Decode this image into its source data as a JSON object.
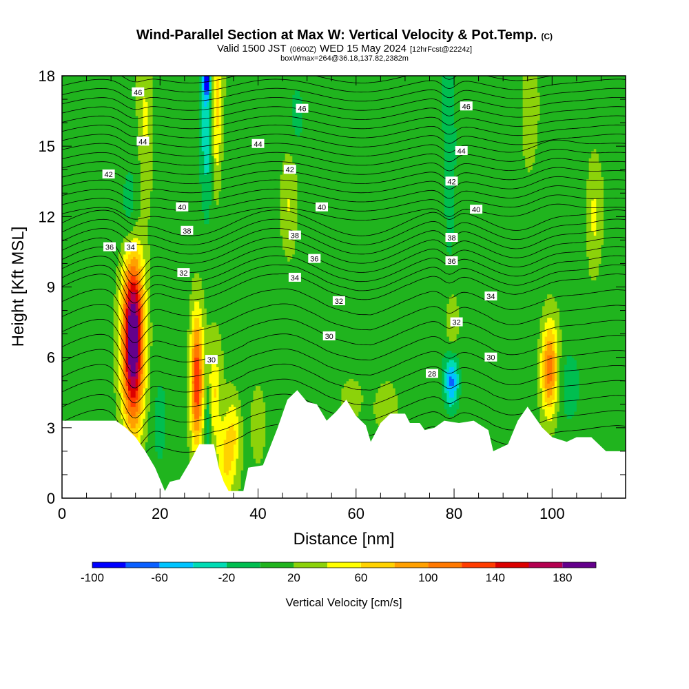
{
  "title": {
    "main": "Wind-Parallel Section at Max W: Vertical Velocity & Pot.Temp.",
    "copyright": "(C)",
    "valid_prefix": "Valid 1500 JST",
    "zulu": "(0600Z)",
    "valid_date": "WED 15 May 2024",
    "forecast": "[12hrFcst@2224z]",
    "box": "boxWmax=264@36.18,137.82,2382m"
  },
  "chart_data": {
    "type": "heatmap",
    "xlabel": "Distance [nm]",
    "ylabel": "Height [Kft MSL]",
    "xlim": [
      0,
      115
    ],
    "ylim": [
      0,
      18
    ],
    "x_ticks": [
      "0",
      "20",
      "40",
      "60",
      "80",
      "100"
    ],
    "x_tick_values": [
      0,
      20,
      40,
      60,
      80,
      100
    ],
    "y_ticks": [
      "0",
      "3",
      "6",
      "9",
      "12",
      "15",
      "18"
    ],
    "y_tick_values": [
      0,
      3,
      6,
      9,
      12,
      15,
      18
    ],
    "colorbar": {
      "label": "Vertical Velocity [cm/s]",
      "tick_labels": [
        "-100",
        "-60",
        "-20",
        "20",
        "60",
        "100",
        "140",
        "180"
      ],
      "tick_values": [
        -100,
        -60,
        -20,
        20,
        60,
        100,
        140,
        180
      ],
      "levels": [
        -100,
        -80,
        -60,
        -40,
        -20,
        0,
        20,
        40,
        60,
        80,
        100,
        120,
        140,
        160,
        180,
        200
      ],
      "colors": [
        "#0000ff",
        "#0a60ff",
        "#00c4ff",
        "#00dcb4",
        "#00be50",
        "#20b41e",
        "#8cd20a",
        "#ffff00",
        "#ffd200",
        "#ffa000",
        "#ff7800",
        "#ff3c00",
        "#dc0000",
        "#b40050",
        "#64008c"
      ]
    },
    "terrain_profile_kft": [
      [
        0,
        3.3
      ],
      [
        11,
        3.3
      ],
      [
        13,
        3.0
      ],
      [
        15,
        2.6
      ],
      [
        17,
        2.0
      ],
      [
        19,
        1.3
      ],
      [
        20,
        0.8
      ],
      [
        21,
        0.3
      ],
      [
        22,
        0.7
      ],
      [
        24,
        0.8
      ],
      [
        26,
        1.5
      ],
      [
        28,
        2.3
      ],
      [
        31,
        2.3
      ],
      [
        32,
        1.3
      ],
      [
        33,
        0.7
      ],
      [
        34,
        0.3
      ],
      [
        37,
        0.3
      ],
      [
        38,
        1.3
      ],
      [
        41,
        1.4
      ],
      [
        44,
        3.0
      ],
      [
        46,
        4.2
      ],
      [
        48,
        4.6
      ],
      [
        50,
        4.1
      ],
      [
        52,
        4.0
      ],
      [
        54,
        3.3
      ],
      [
        56,
        3.7
      ],
      [
        58,
        4.2
      ],
      [
        60,
        3.5
      ],
      [
        62,
        3.1
      ],
      [
        63,
        2.4
      ],
      [
        65,
        3.2
      ],
      [
        67,
        3.6
      ],
      [
        70,
        3.6
      ],
      [
        71,
        3.2
      ],
      [
        73,
        3.2
      ],
      [
        74,
        2.9
      ],
      [
        76,
        3.0
      ],
      [
        78,
        3.3
      ],
      [
        81,
        3.2
      ],
      [
        84,
        3.3
      ],
      [
        87,
        2.9
      ],
      [
        88,
        2.0
      ],
      [
        91,
        2.3
      ],
      [
        93,
        3.3
      ],
      [
        95,
        3.9
      ],
      [
        98,
        3.0
      ],
      [
        100,
        2.6
      ],
      [
        103,
        2.4
      ],
      [
        105,
        2.6
      ],
      [
        108,
        2.6
      ],
      [
        111,
        2.0
      ],
      [
        115,
        2.0
      ]
    ],
    "velocity_features": [
      {
        "x": 14.5,
        "y": 6.8,
        "sx": 1.5,
        "sy": 2.6,
        "w": 200
      },
      {
        "x": 27.5,
        "y": 5.0,
        "sx": 0.9,
        "sy": 2.0,
        "w": 125
      },
      {
        "x": 33.5,
        "y": 1.6,
        "sx": 1.5,
        "sy": 1.3,
        "w": 55
      },
      {
        "x": 31.0,
        "y": 4.5,
        "sx": 0.9,
        "sy": 1.3,
        "w": 45
      },
      {
        "x": 99.5,
        "y": 5.5,
        "sx": 1.2,
        "sy": 1.4,
        "w": 100
      },
      {
        "x": 31.5,
        "y": 16.5,
        "sx": 0.8,
        "sy": 2.5,
        "w": 55
      },
      {
        "x": 17.0,
        "y": 16.0,
        "sx": 1.0,
        "sy": 2.5,
        "w": 30
      },
      {
        "x": 46.5,
        "y": 12.5,
        "sx": 1.2,
        "sy": 1.5,
        "w": 32
      },
      {
        "x": 108.5,
        "y": 12.0,
        "sx": 1.0,
        "sy": 1.7,
        "w": 30
      },
      {
        "x": 95.5,
        "y": 17.0,
        "sx": 1.2,
        "sy": 1.5,
        "w": 30
      },
      {
        "x": 79.5,
        "y": 7.5,
        "sx": 0.9,
        "sy": 1.0,
        "w": 30
      },
      {
        "x": 35.0,
        "y": 3.0,
        "sx": 1.0,
        "sy": 1.0,
        "w": 32
      },
      {
        "x": 40.0,
        "y": 3.5,
        "sx": 1.0,
        "sy": 1.0,
        "w": 28
      },
      {
        "x": 59.0,
        "y": 4.3,
        "sx": 1.5,
        "sy": 0.6,
        "w": 30
      },
      {
        "x": 66.0,
        "y": 3.8,
        "sx": 1.5,
        "sy": 0.6,
        "w": 25
      },
      {
        "x": 14.0,
        "y": 12.0,
        "sx": 1.2,
        "sy": 1.4,
        "w": -30
      },
      {
        "x": 29.5,
        "y": 16.5,
        "sx": 0.9,
        "sy": 2.5,
        "w": -55
      },
      {
        "x": 29.5,
        "y": 17.8,
        "sx": 0.5,
        "sy": 0.4,
        "w": -95
      },
      {
        "x": 29.8,
        "y": 3.5,
        "sx": 0.4,
        "sy": 1.0,
        "w": -40
      },
      {
        "x": 79.5,
        "y": 5.0,
        "sx": 1.0,
        "sy": 0.8,
        "w": -75
      },
      {
        "x": 79.0,
        "y": 14.5,
        "sx": 1.0,
        "sy": 3.5,
        "w": -28
      },
      {
        "x": 48.0,
        "y": 16.5,
        "sx": 1.0,
        "sy": 1.0,
        "w": -25
      },
      {
        "x": 103.5,
        "y": 5.0,
        "sx": 2.0,
        "sy": 1.4,
        "w": -25
      },
      {
        "x": 20.0,
        "y": 3.0,
        "sx": 1.0,
        "sy": 1.3,
        "w": -25
      }
    ],
    "contour_labels": [
      {
        "text": "46",
        "x": 15.5,
        "y": 17.3
      },
      {
        "text": "44",
        "x": 16.5,
        "y": 15.2
      },
      {
        "text": "42",
        "x": 9.5,
        "y": 13.8
      },
      {
        "text": "40",
        "x": 24.5,
        "y": 12.4
      },
      {
        "text": "38",
        "x": 25.5,
        "y": 11.4
      },
      {
        "text": "36",
        "x": 9.7,
        "y": 10.7
      },
      {
        "text": "34",
        "x": 14.0,
        "y": 10.7
      },
      {
        "text": "32",
        "x": 24.8,
        "y": 9.6
      },
      {
        "text": "30",
        "x": 30.5,
        "y": 5.9
      },
      {
        "text": "46",
        "x": 49.0,
        "y": 16.6
      },
      {
        "text": "44",
        "x": 40.0,
        "y": 15.1
      },
      {
        "text": "42",
        "x": 46.5,
        "y": 14.0
      },
      {
        "text": "40",
        "x": 53.0,
        "y": 12.4
      },
      {
        "text": "38",
        "x": 47.5,
        "y": 11.2
      },
      {
        "text": "36",
        "x": 51.5,
        "y": 10.2
      },
      {
        "text": "34",
        "x": 47.5,
        "y": 9.4
      },
      {
        "text": "32",
        "x": 56.5,
        "y": 8.4
      },
      {
        "text": "30",
        "x": 54.5,
        "y": 6.9
      },
      {
        "text": "28",
        "x": 75.5,
        "y": 5.3
      },
      {
        "text": "46",
        "x": 82.5,
        "y": 16.7
      },
      {
        "text": "44",
        "x": 81.5,
        "y": 14.8
      },
      {
        "text": "42",
        "x": 79.5,
        "y": 13.5
      },
      {
        "text": "40",
        "x": 84.5,
        "y": 12.3
      },
      {
        "text": "38",
        "x": 79.5,
        "y": 11.1
      },
      {
        "text": "36",
        "x": 79.5,
        "y": 10.1
      },
      {
        "text": "34",
        "x": 87.5,
        "y": 8.6
      },
      {
        "text": "32",
        "x": 80.5,
        "y": 7.5
      },
      {
        "text": "30",
        "x": 87.5,
        "y": 6.0
      }
    ]
  }
}
